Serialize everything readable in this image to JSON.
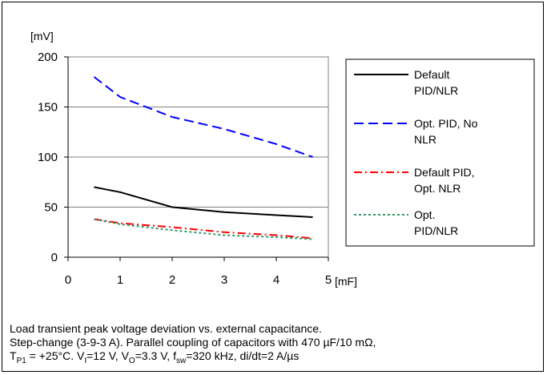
{
  "chart_data": {
    "type": "line",
    "xlabel": "[mF]",
    "ylabel": "[mV]",
    "xlim": [
      0,
      5
    ],
    "ylim": [
      0,
      200
    ],
    "xticks": [
      0,
      1,
      2,
      3,
      4,
      5
    ],
    "yticks": [
      0,
      50,
      100,
      150,
      200
    ],
    "grid": "horizontal",
    "legend_position": "right",
    "series": [
      {
        "name": "Default PID/NLR",
        "color": "#000000",
        "dash": "solid",
        "x": [
          0.5,
          1,
          2,
          3,
          4,
          4.7
        ],
        "y": [
          70,
          65,
          50,
          45,
          42,
          40
        ]
      },
      {
        "name": "Opt. PID, No NLR",
        "color": "#0000ff",
        "dash": "dash",
        "x": [
          0.5,
          1,
          2,
          3,
          4,
          4.7
        ],
        "y": [
          180,
          160,
          140,
          128,
          113,
          100
        ]
      },
      {
        "name": "Default PID, Opt. NLR",
        "color": "#ff0000",
        "dash": "dashdot",
        "x": [
          0.5,
          1,
          2,
          3,
          4,
          4.7
        ],
        "y": [
          38,
          34,
          30,
          25,
          22,
          19
        ]
      },
      {
        "name": "Opt. PID/NLR",
        "color": "#339966",
        "dash": "dot",
        "x": [
          0.5,
          1,
          2,
          3,
          4,
          4.7
        ],
        "y": [
          38,
          33,
          27,
          22,
          20,
          18
        ]
      }
    ],
    "legend_lines": [
      [
        "Default",
        "PID/NLR"
      ],
      [
        "Opt. PID, No",
        "NLR"
      ],
      [
        "Default PID,",
        "Opt. NLR"
      ],
      [
        "Opt.",
        "PID/NLR"
      ]
    ]
  },
  "caption": {
    "line1": "Load transient peak voltage deviation vs. external capacitance.",
    "line2": "Step-change (3-9-3 A). Parallel coupling of capacitors with 470 µF/10 mΩ,",
    "l3_a": "T",
    "l3_b": "P1",
    "l3_c": " = +25°C. V",
    "l3_d": "I",
    "l3_e": "=12 V, V",
    "l3_f": "O",
    "l3_g": "=3.3 V, f",
    "l3_h": "sw",
    "l3_i": "=320 kHz, di/dt=2 A/µs"
  }
}
